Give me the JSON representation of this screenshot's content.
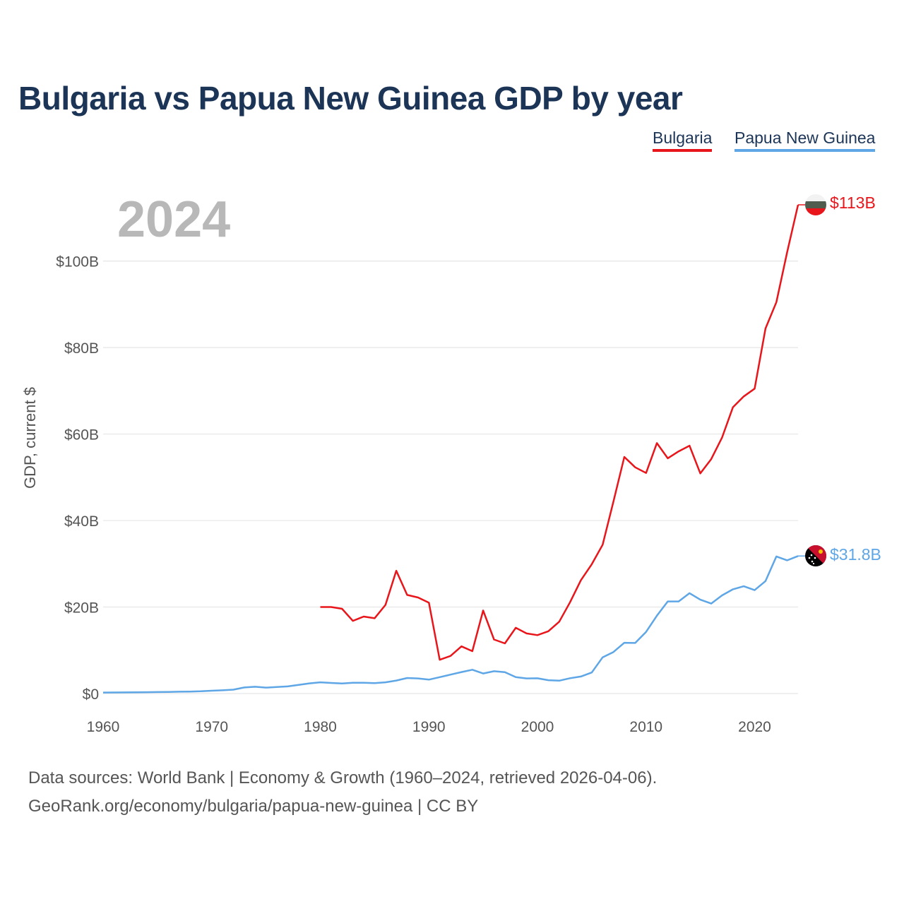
{
  "title": "Bulgaria vs Papua New Guinea GDP by year",
  "year_label": "2024",
  "legend": [
    {
      "name": "Bulgaria",
      "color": "#e8161b"
    },
    {
      "name": "Papua New Guinea",
      "color": "#5ea6e6"
    }
  ],
  "footer": {
    "line1": "Data sources: World Bank | Economy & Growth (1960–2024, retrieved 2026-04-06).",
    "line2": "GeoRank.org/economy/bulgaria/papua-new-guinea | CC BY"
  },
  "chart_data": {
    "type": "line",
    "title": "Bulgaria vs Papua New Guinea GDP by year",
    "xlabel": "",
    "ylabel": "GDP, current $",
    "xlim": [
      1960,
      2024
    ],
    "ylim": [
      0,
      113
    ],
    "x_ticks": [
      1960,
      1970,
      1980,
      1990,
      2000,
      2010,
      2020
    ],
    "y_ticks": [
      0,
      20,
      40,
      60,
      80,
      100
    ],
    "y_tick_labels": [
      "$0",
      "$20B",
      "$40B",
      "$60B",
      "$80B",
      "$100B"
    ],
    "grid": true,
    "unit": "billions of current US$",
    "series": [
      {
        "name": "Bulgaria",
        "color": "#e8161b",
        "end_label": "$113B",
        "end_icon": "bulgaria-flag-icon",
        "points": [
          [
            1980,
            20.0
          ],
          [
            1981,
            20.0
          ],
          [
            1982,
            19.6
          ],
          [
            1983,
            16.8
          ],
          [
            1984,
            17.8
          ],
          [
            1985,
            17.4
          ],
          [
            1986,
            20.5
          ],
          [
            1987,
            28.4
          ],
          [
            1988,
            22.8
          ],
          [
            1989,
            22.2
          ],
          [
            1990,
            21.0
          ],
          [
            1991,
            7.8
          ],
          [
            1992,
            8.7
          ],
          [
            1993,
            10.9
          ],
          [
            1994,
            9.8
          ],
          [
            1995,
            19.2
          ],
          [
            1996,
            12.5
          ],
          [
            1997,
            11.6
          ],
          [
            1998,
            15.2
          ],
          [
            1999,
            13.9
          ],
          [
            2000,
            13.5
          ],
          [
            2001,
            14.4
          ],
          [
            2002,
            16.6
          ],
          [
            2003,
            21.1
          ],
          [
            2004,
            26.2
          ],
          [
            2005,
            29.9
          ],
          [
            2006,
            34.4
          ],
          [
            2007,
            44.4
          ],
          [
            2008,
            54.7
          ],
          [
            2009,
            52.3
          ],
          [
            2010,
            51.0
          ],
          [
            2011,
            57.9
          ],
          [
            2012,
            54.4
          ],
          [
            2013,
            56.0
          ],
          [
            2014,
            57.3
          ],
          [
            2015,
            50.9
          ],
          [
            2016,
            54.2
          ],
          [
            2017,
            59.2
          ],
          [
            2018,
            66.2
          ],
          [
            2019,
            68.7
          ],
          [
            2020,
            70.5
          ],
          [
            2021,
            84.4
          ],
          [
            2022,
            90.5
          ],
          [
            2023,
            102.1
          ],
          [
            2024,
            113.0
          ]
        ]
      },
      {
        "name": "Papua New Guinea",
        "color": "#5ea6e6",
        "end_label": "$31.8B",
        "end_icon": "papua-new-guinea-flag-icon",
        "points": [
          [
            1960,
            0.23
          ],
          [
            1961,
            0.24
          ],
          [
            1962,
            0.26
          ],
          [
            1963,
            0.28
          ],
          [
            1964,
            0.31
          ],
          [
            1965,
            0.34
          ],
          [
            1966,
            0.38
          ],
          [
            1967,
            0.42
          ],
          [
            1968,
            0.46
          ],
          [
            1969,
            0.53
          ],
          [
            1970,
            0.65
          ],
          [
            1971,
            0.75
          ],
          [
            1972,
            0.9
          ],
          [
            1973,
            1.4
          ],
          [
            1974,
            1.56
          ],
          [
            1975,
            1.37
          ],
          [
            1976,
            1.5
          ],
          [
            1977,
            1.65
          ],
          [
            1978,
            2.0
          ],
          [
            1979,
            2.35
          ],
          [
            1980,
            2.6
          ],
          [
            1981,
            2.45
          ],
          [
            1982,
            2.33
          ],
          [
            1983,
            2.5
          ],
          [
            1984,
            2.5
          ],
          [
            1985,
            2.4
          ],
          [
            1986,
            2.6
          ],
          [
            1987,
            3.0
          ],
          [
            1988,
            3.6
          ],
          [
            1989,
            3.5
          ],
          [
            1990,
            3.22
          ],
          [
            1991,
            3.79
          ],
          [
            1992,
            4.38
          ],
          [
            1993,
            4.97
          ],
          [
            1994,
            5.5
          ],
          [
            1995,
            4.63
          ],
          [
            1996,
            5.16
          ],
          [
            1997,
            4.94
          ],
          [
            1998,
            3.79
          ],
          [
            1999,
            3.5
          ],
          [
            2000,
            3.52
          ],
          [
            2001,
            3.08
          ],
          [
            2002,
            2.97
          ],
          [
            2003,
            3.54
          ],
          [
            2004,
            3.93
          ],
          [
            2005,
            4.87
          ],
          [
            2006,
            8.38
          ],
          [
            2007,
            9.6
          ],
          [
            2008,
            11.74
          ],
          [
            2009,
            11.7
          ],
          [
            2010,
            14.25
          ],
          [
            2011,
            18.0
          ],
          [
            2012,
            21.3
          ],
          [
            2013,
            21.3
          ],
          [
            2014,
            23.2
          ],
          [
            2015,
            21.7
          ],
          [
            2016,
            20.8
          ],
          [
            2017,
            22.7
          ],
          [
            2018,
            24.1
          ],
          [
            2019,
            24.8
          ],
          [
            2020,
            23.9
          ],
          [
            2021,
            26.0
          ],
          [
            2022,
            31.7
          ],
          [
            2023,
            30.8
          ],
          [
            2024,
            31.8
          ]
        ]
      }
    ]
  }
}
